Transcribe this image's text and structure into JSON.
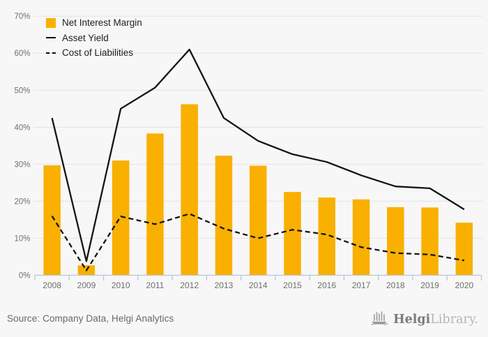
{
  "colors": {
    "background": "#f7f7f7",
    "bar": "#f9b000",
    "line": "#141414",
    "grid": "#e4e4e4",
    "axis": "#b9c7d6",
    "tick_label": "#6e6e6e",
    "legend_text": "#1e1e1e",
    "source_text": "#686868"
  },
  "chart_data": {
    "type": "bar",
    "categories": [
      "2008",
      "2009",
      "2010",
      "2011",
      "2012",
      "2013",
      "2014",
      "2015",
      "2016",
      "2017",
      "2018",
      "2019",
      "2020"
    ],
    "series": [
      {
        "name": "Net Interest Margin",
        "type": "bar",
        "style": "solid",
        "color": "#f9b000",
        "values": [
          29.7,
          2.7,
          31.0,
          38.3,
          46.2,
          32.3,
          29.6,
          22.5,
          21.0,
          20.5,
          18.4,
          18.3,
          14.2
        ]
      },
      {
        "name": "Asset Yield",
        "type": "line",
        "style": "solid",
        "color": "#141414",
        "values": [
          42.5,
          3.8,
          45.0,
          50.7,
          61.0,
          42.5,
          36.3,
          32.7,
          30.6,
          27.0,
          24.0,
          23.5,
          17.8
        ]
      },
      {
        "name": "Cost of Liabilities",
        "type": "line",
        "style": "dashed",
        "color": "#141414",
        "values": [
          16.0,
          1.3,
          15.9,
          13.8,
          16.6,
          12.6,
          10.0,
          12.3,
          11.0,
          7.6,
          6.0,
          5.6,
          4.0
        ]
      }
    ],
    "title": "",
    "xlabel": "",
    "ylabel": "",
    "ylim": [
      0,
      70
    ],
    "ytick_step": 10,
    "ytick_suffix": "%",
    "grid": true,
    "legend_position": "top-left"
  },
  "footer": {
    "source_text": "Source: Company Data, Helgi Analytics",
    "brand_bold": "Helgi",
    "brand_light": "Library."
  }
}
